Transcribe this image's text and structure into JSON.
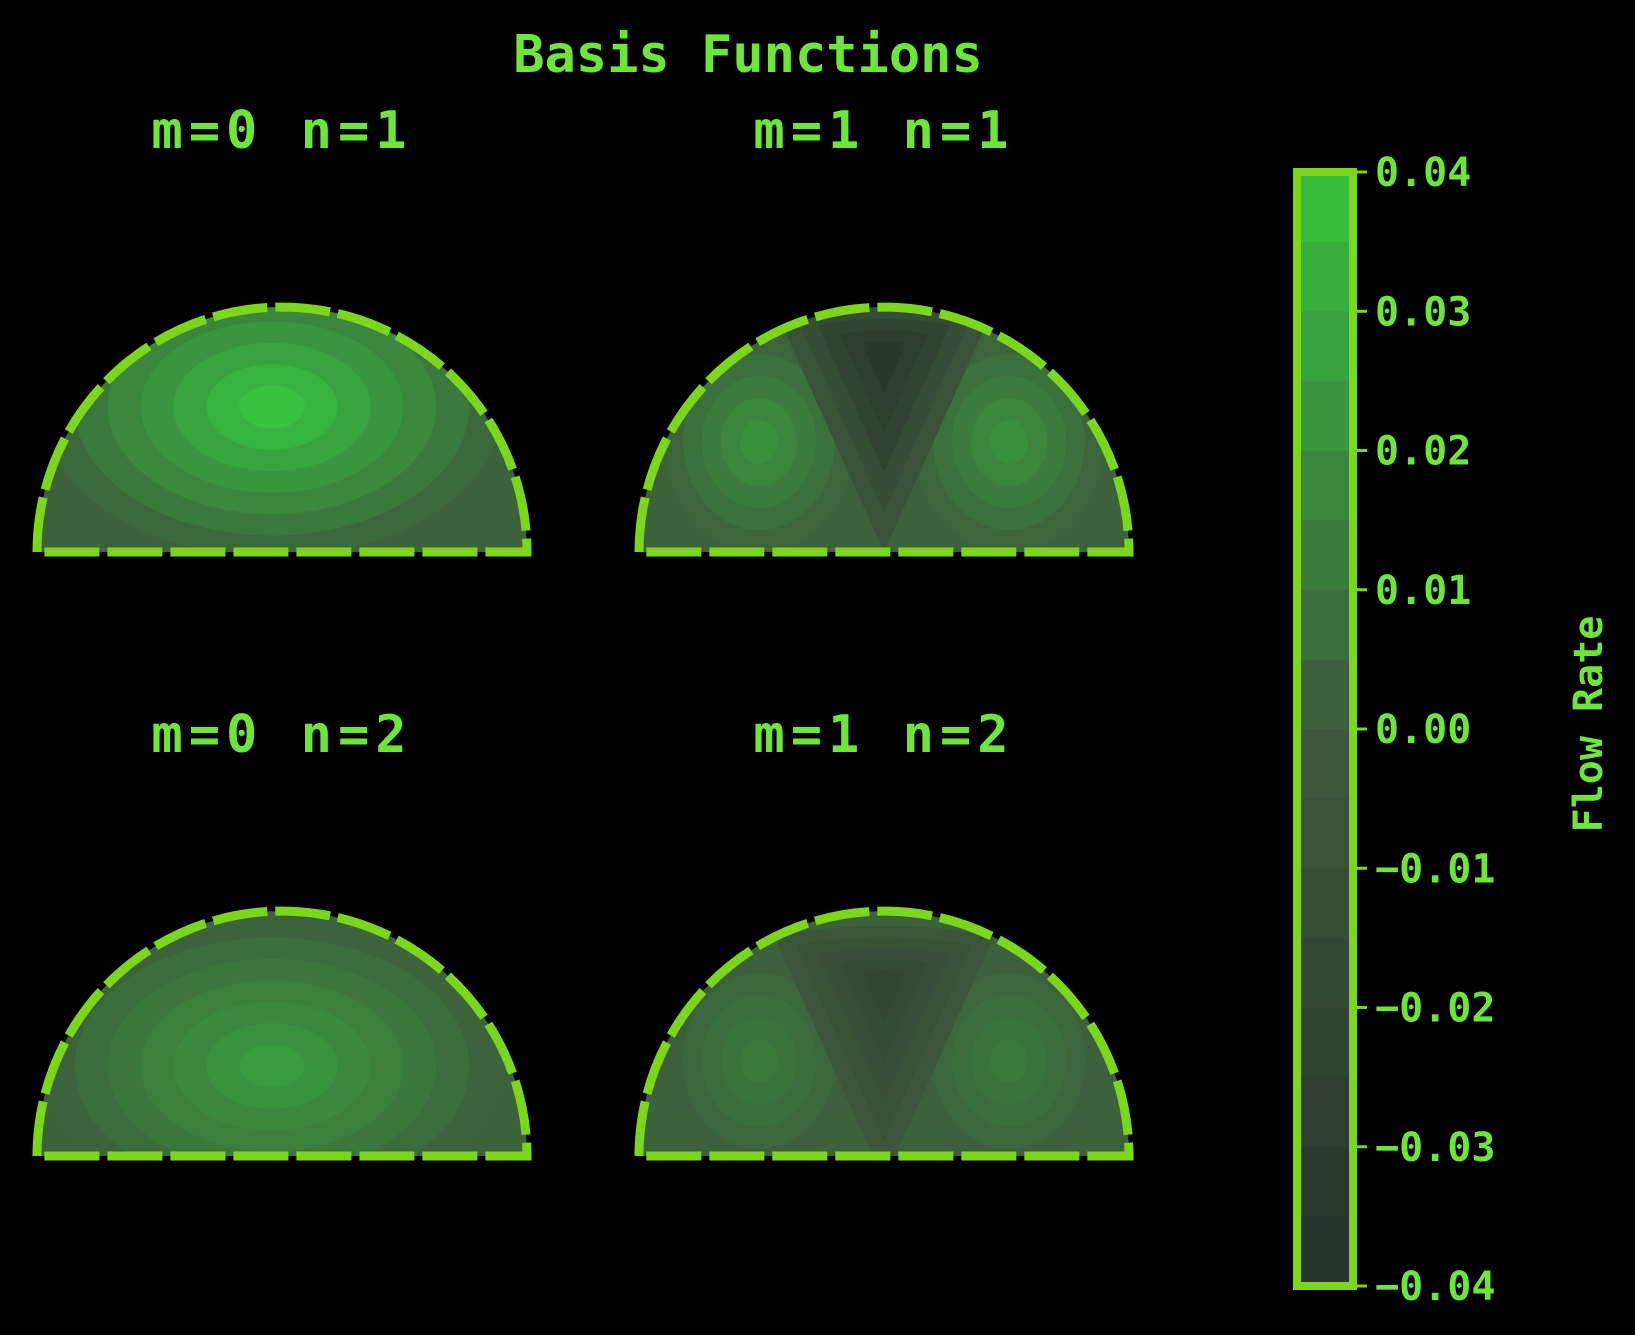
{
  "chart_data": {
    "type": "heatmap",
    "title": "Basis Functions",
    "colors": {
      "background": "#000000",
      "text": "#6de63a",
      "outline": "#7bd61c",
      "colormap_low": "#26312a",
      "colormap_mid": "#3d5a3c",
      "colormap_high": "#36c23f"
    },
    "panels": [
      {
        "title": "m=0 n=1",
        "m": 0,
        "n": 1,
        "peak_value": 0.04
      },
      {
        "title": "m=1 n=1",
        "m": 1,
        "n": 1,
        "peak_value": 0.035
      },
      {
        "title": "m=0 n=2",
        "m": 0,
        "n": 2,
        "peak_value": 0.025
      },
      {
        "title": "m=1 n=2",
        "m": 1,
        "n": 2,
        "peak_value": 0.02
      }
    ],
    "colorbar": {
      "label": "Flow Rate",
      "range": [
        -0.04,
        0.04
      ],
      "ticks": [
        "0.04",
        "0.03",
        "0.02",
        "0.01",
        "0.00",
        "−0.01",
        "−0.02",
        "−0.03",
        "−0.04"
      ]
    },
    "grid": false,
    "legend": "none"
  }
}
